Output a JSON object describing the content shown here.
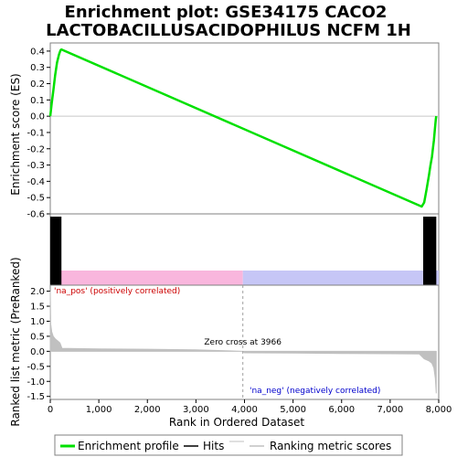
{
  "chart_data": {
    "type": "line",
    "title_line1": "Enrichment plot: GSE34175 CACO2",
    "title_line2": "LACTOBACILLUSACIDOPHILUS NCFM 1H",
    "xlabel": "Rank in Ordered Dataset",
    "ylabel_top": "Enrichment score (ES)",
    "ylabel_bottom": "Ranked list metric (PreRanked)",
    "xlim": [
      0,
      8000
    ],
    "x_ticks": [
      0,
      1000,
      2000,
      3000,
      4000,
      5000,
      6000,
      7000,
      8000
    ],
    "x_tick_labels": [
      "0",
      "1,000",
      "2,000",
      "3,000",
      "4,000",
      "5,000",
      "6,000",
      "7,000",
      "8,000"
    ],
    "es_ylim": [
      -0.6,
      0.45
    ],
    "es_ticks": [
      0.4,
      0.3,
      0.2,
      0.1,
      0.0,
      -0.1,
      -0.2,
      -0.3,
      -0.4,
      -0.5,
      -0.6
    ],
    "es_tick_labels": [
      "0.4",
      "0.3",
      "0.2",
      "0.1",
      "0.0",
      "-0.1",
      "-0.2",
      "-0.3",
      "-0.4",
      "-0.5",
      "-0.6"
    ],
    "es_curve": {
      "color": "#00e000",
      "x": [
        0,
        30,
        60,
        100,
        140,
        180,
        210,
        230,
        7650,
        7700,
        7750,
        7800,
        7830,
        7860,
        7880,
        7900,
        7920,
        7940,
        7950
      ],
      "y": [
        0.0,
        0.08,
        0.15,
        0.25,
        0.33,
        0.38,
        0.405,
        0.41,
        -0.555,
        -0.53,
        -0.45,
        -0.36,
        -0.3,
        -0.25,
        -0.2,
        -0.15,
        -0.08,
        -0.02,
        0.0
      ]
    },
    "hits": {
      "color": "#000000",
      "ranges": [
        [
          0,
          230
        ],
        [
          7680,
          7950
        ]
      ]
    },
    "metric_ylim": [
      -1.6,
      2.2
    ],
    "metric_ticks": [
      2.0,
      1.5,
      1.0,
      0.5,
      0.0,
      -0.5,
      -1.0,
      -1.5
    ],
    "metric_tick_labels": [
      "2.0",
      "1.5",
      "1.0",
      "0.5",
      "0.0",
      "-0.5",
      "-1.0",
      "-1.5"
    ],
    "metric_color": "#c0c0c0",
    "metric_curve": {
      "x": [
        0,
        10,
        30,
        60,
        100,
        150,
        200,
        240,
        1000,
        2000,
        3000,
        3966,
        4000,
        5000,
        6000,
        7000,
        7600,
        7700,
        7800,
        7860,
        7900,
        7930,
        7950
      ],
      "y": [
        2.0,
        0.9,
        0.65,
        0.5,
        0.42,
        0.35,
        0.28,
        0.1,
        0.08,
        0.07,
        0.05,
        0.0,
        -0.05,
        -0.06,
        -0.07,
        -0.08,
        -0.09,
        -0.25,
        -0.32,
        -0.4,
        -0.55,
        -0.9,
        -1.4
      ]
    },
    "zero_cross_text": "Zero cross at 3966",
    "zero_cross_x": 3966,
    "pos_label": "'na_pos' (positively correlated)",
    "neg_label": "'na_neg' (negatively correlated)",
    "pos_color": "#cc0000",
    "neg_color": "#0000cc",
    "pos_band_color": "#f9b6dd",
    "neg_band_color": "#c6c6f6",
    "legend": [
      {
        "label": "Enrichment profile",
        "color": "#00e000"
      },
      {
        "label": "Hits",
        "color": "#000000"
      },
      {
        "label": "Ranking metric scores",
        "color": "#c0c0c0"
      }
    ]
  }
}
